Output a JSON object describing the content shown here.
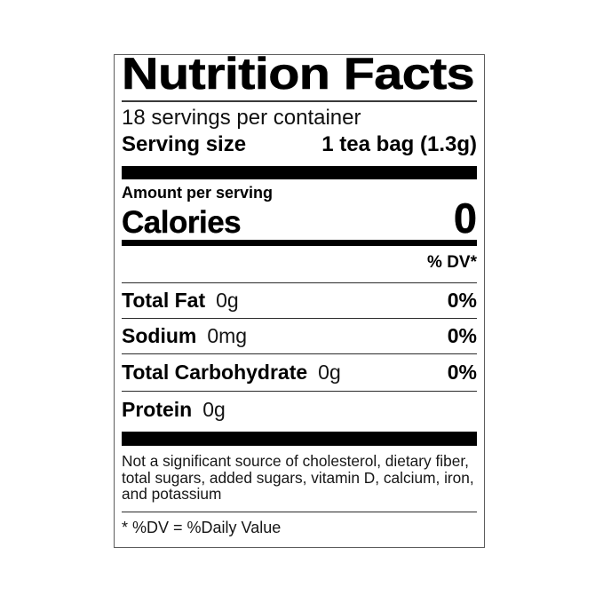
{
  "label": {
    "title": "Nutrition Facts",
    "servings_per_container": "18 servings per container",
    "serving_size_label": "Serving size",
    "serving_size_value": "1 tea bag (1.3g)",
    "amount_per_serving": "Amount per serving",
    "calories_label": "Calories",
    "calories_value": "0",
    "dv_column_header": "% DV*",
    "nutrients": [
      {
        "name": "Total Fat",
        "amount": "0g",
        "dv": "0%"
      },
      {
        "name": "Sodium",
        "amount": "0mg",
        "dv": "0%"
      },
      {
        "name": "Total Carbohydrate",
        "amount": "0g",
        "dv": "0%"
      },
      {
        "name": "Protein",
        "amount": "0g",
        "dv": ""
      }
    ],
    "footnote_lines": [
      "Not a significant source of cholesterol, dietary fiber,",
      "total sugars, added sugars, vitamin D, calcium, iron,",
      "and potassium"
    ],
    "dv_definition": "* %DV = %Daily Value",
    "colors": {
      "text": "#000000",
      "secondary_text": "#161616",
      "border": "#5c5c5c",
      "bar": "#000000",
      "background": "#ffffff"
    }
  }
}
